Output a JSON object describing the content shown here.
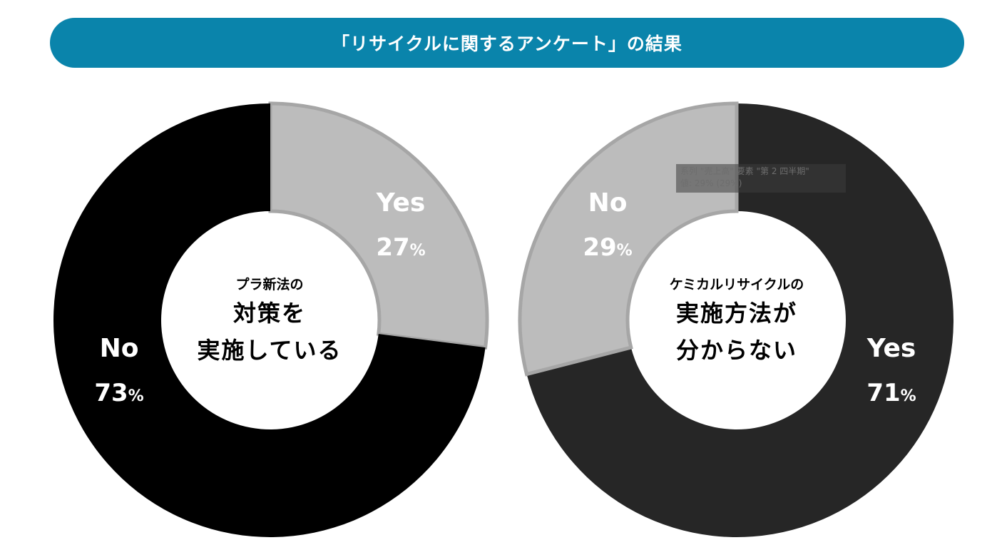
{
  "title": "「リサイクルに関するアンケート」の結果",
  "colors": {
    "banner": "#0a84ab",
    "chart1_no": "#000000",
    "chart1_yes": "#bcbcbc",
    "chart2_yes": "#262626",
    "chart2_no": "#bcbcbc",
    "stroke": "#a6a6a6"
  },
  "chart_data": [
    {
      "type": "pie",
      "center_label": {
        "small": "プラ新法の",
        "line1": "対策を",
        "line2": "実施している"
      },
      "slices": [
        {
          "label": "Yes",
          "value": 27,
          "display": "27",
          "unit": "%"
        },
        {
          "label": "No",
          "value": 73,
          "display": "73",
          "unit": "%"
        }
      ]
    },
    {
      "type": "pie",
      "center_label": {
        "small": "ケミカルリサイクルの",
        "line1": "実施方法が",
        "line2": "分からない"
      },
      "slices": [
        {
          "label": "Yes",
          "value": 71,
          "display": "71",
          "unit": "%"
        },
        {
          "label": "No",
          "value": 29,
          "display": "29",
          "unit": "%"
        }
      ]
    }
  ],
  "tooltip": {
    "line1": "系列 \"売上高\" 要素 \"第 2 四半期\"",
    "line2": "値: 29% (29%)"
  }
}
